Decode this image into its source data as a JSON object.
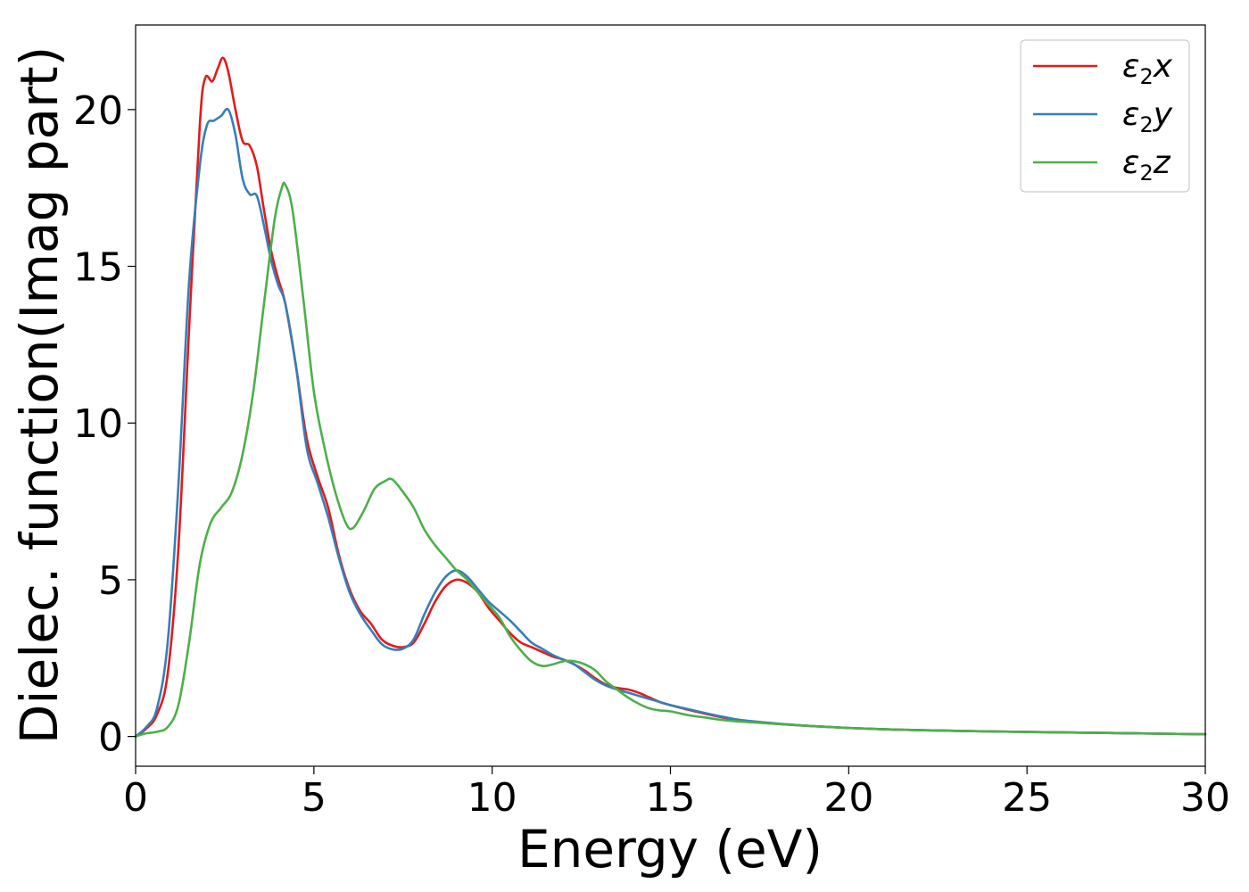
{
  "chart_data": {
    "type": "line",
    "title": "",
    "xlabel": "Energy (eV)",
    "ylabel": "Dielec. function(Imag part)",
    "xlim": [
      0,
      30
    ],
    "ylim": [
      -0.95,
      22.7
    ],
    "xticks": [
      0,
      5,
      10,
      15,
      20,
      25,
      30
    ],
    "xtick_labels": [
      "0",
      "5",
      "10",
      "15",
      "20",
      "25",
      "30"
    ],
    "yticks": [
      0,
      5,
      10,
      15,
      20
    ],
    "ytick_labels": [
      "0",
      "5",
      "10",
      "15",
      "20"
    ],
    "grid": false,
    "legend_position": "top-right",
    "series": [
      {
        "name": "ε₂x",
        "label_main": "ε",
        "label_sub": "2",
        "label_tail": "x",
        "color": "#e41a1c",
        "points": [
          [
            0,
            0.0
          ],
          [
            0.3,
            0.25
          ],
          [
            0.6,
            0.7
          ],
          [
            0.9,
            2.0
          ],
          [
            1.2,
            6.0
          ],
          [
            1.5,
            13.0
          ],
          [
            1.8,
            19.5
          ],
          [
            1.95,
            21.0
          ],
          [
            2.15,
            20.9
          ],
          [
            2.3,
            21.3
          ],
          [
            2.45,
            21.65
          ],
          [
            2.6,
            21.2
          ],
          [
            2.8,
            20.0
          ],
          [
            3.0,
            19.0
          ],
          [
            3.2,
            18.85
          ],
          [
            3.4,
            18.2
          ],
          [
            3.6,
            16.8
          ],
          [
            3.8,
            15.5
          ],
          [
            4.0,
            14.6
          ],
          [
            4.2,
            13.8
          ],
          [
            4.5,
            11.8
          ],
          [
            4.8,
            9.5
          ],
          [
            5.1,
            8.3
          ],
          [
            5.4,
            7.3
          ],
          [
            5.7,
            5.8
          ],
          [
            6.0,
            4.7
          ],
          [
            6.3,
            4.0
          ],
          [
            6.6,
            3.6
          ],
          [
            6.9,
            3.1
          ],
          [
            7.2,
            2.9
          ],
          [
            7.5,
            2.85
          ],
          [
            7.8,
            3.0
          ],
          [
            8.1,
            3.6
          ],
          [
            8.4,
            4.3
          ],
          [
            8.7,
            4.8
          ],
          [
            9.0,
            5.0
          ],
          [
            9.3,
            4.9
          ],
          [
            9.6,
            4.6
          ],
          [
            9.9,
            4.1
          ],
          [
            10.2,
            3.7
          ],
          [
            10.5,
            3.3
          ],
          [
            10.8,
            3.0
          ],
          [
            11.1,
            2.85
          ],
          [
            11.4,
            2.7
          ],
          [
            11.7,
            2.55
          ],
          [
            12.0,
            2.45
          ],
          [
            12.3,
            2.3
          ],
          [
            12.6,
            2.1
          ],
          [
            12.9,
            1.85
          ],
          [
            13.2,
            1.65
          ],
          [
            13.5,
            1.55
          ],
          [
            13.8,
            1.5
          ],
          [
            14.1,
            1.4
          ],
          [
            14.4,
            1.25
          ],
          [
            14.7,
            1.1
          ],
          [
            15.0,
            1.0
          ],
          [
            15.5,
            0.85
          ],
          [
            16.0,
            0.72
          ],
          [
            16.5,
            0.6
          ],
          [
            17.0,
            0.5
          ],
          [
            18.0,
            0.4
          ],
          [
            19.0,
            0.33
          ],
          [
            20.0,
            0.27
          ],
          [
            21.0,
            0.23
          ],
          [
            22.0,
            0.2
          ],
          [
            24.0,
            0.16
          ],
          [
            26.0,
            0.13
          ],
          [
            28.0,
            0.1
          ],
          [
            30.0,
            0.07
          ]
        ]
      },
      {
        "name": "ε₂y",
        "label_main": "ε",
        "label_sub": "2",
        "label_tail": "y",
        "color": "#377eb8",
        "points": [
          [
            0,
            0.0
          ],
          [
            0.3,
            0.3
          ],
          [
            0.6,
            0.9
          ],
          [
            0.9,
            3.0
          ],
          [
            1.2,
            8.0
          ],
          [
            1.5,
            14.5
          ],
          [
            1.8,
            18.2
          ],
          [
            2.0,
            19.5
          ],
          [
            2.2,
            19.65
          ],
          [
            2.4,
            19.8
          ],
          [
            2.6,
            20.0
          ],
          [
            2.8,
            19.2
          ],
          [
            3.0,
            17.8
          ],
          [
            3.2,
            17.3
          ],
          [
            3.4,
            17.25
          ],
          [
            3.6,
            16.3
          ],
          [
            3.8,
            15.2
          ],
          [
            4.0,
            14.4
          ],
          [
            4.2,
            13.8
          ],
          [
            4.5,
            11.8
          ],
          [
            4.8,
            9.2
          ],
          [
            5.1,
            8.1
          ],
          [
            5.4,
            7.0
          ],
          [
            5.7,
            5.7
          ],
          [
            6.0,
            4.6
          ],
          [
            6.3,
            3.9
          ],
          [
            6.6,
            3.4
          ],
          [
            6.9,
            2.95
          ],
          [
            7.2,
            2.78
          ],
          [
            7.5,
            2.8
          ],
          [
            7.8,
            3.1
          ],
          [
            8.1,
            3.9
          ],
          [
            8.4,
            4.6
          ],
          [
            8.7,
            5.1
          ],
          [
            9.0,
            5.3
          ],
          [
            9.3,
            5.1
          ],
          [
            9.6,
            4.7
          ],
          [
            9.9,
            4.3
          ],
          [
            10.2,
            4.0
          ],
          [
            10.5,
            3.7
          ],
          [
            10.8,
            3.35
          ],
          [
            11.1,
            3.0
          ],
          [
            11.4,
            2.8
          ],
          [
            11.7,
            2.6
          ],
          [
            12.0,
            2.45
          ],
          [
            12.3,
            2.3
          ],
          [
            12.6,
            2.05
          ],
          [
            12.9,
            1.8
          ],
          [
            13.2,
            1.62
          ],
          [
            13.5,
            1.5
          ],
          [
            13.8,
            1.4
          ],
          [
            14.1,
            1.3
          ],
          [
            14.4,
            1.2
          ],
          [
            14.7,
            1.1
          ],
          [
            15.0,
            1.0
          ],
          [
            15.5,
            0.87
          ],
          [
            16.0,
            0.74
          ],
          [
            16.5,
            0.62
          ],
          [
            17.0,
            0.52
          ],
          [
            18.0,
            0.41
          ],
          [
            19.0,
            0.33
          ],
          [
            20.0,
            0.27
          ],
          [
            21.0,
            0.23
          ],
          [
            22.0,
            0.2
          ],
          [
            24.0,
            0.16
          ],
          [
            26.0,
            0.13
          ],
          [
            28.0,
            0.1
          ],
          [
            30.0,
            0.07
          ]
        ]
      },
      {
        "name": "ε₂z",
        "label_main": "ε",
        "label_sub": "2",
        "label_tail": "z",
        "color": "#4daf4a",
        "points": [
          [
            0,
            0.0
          ],
          [
            0.3,
            0.1
          ],
          [
            0.6,
            0.15
          ],
          [
            0.9,
            0.3
          ],
          [
            1.2,
            1.0
          ],
          [
            1.5,
            3.0
          ],
          [
            1.8,
            5.5
          ],
          [
            2.1,
            6.8
          ],
          [
            2.4,
            7.3
          ],
          [
            2.7,
            7.8
          ],
          [
            3.0,
            9.0
          ],
          [
            3.3,
            11.0
          ],
          [
            3.6,
            13.8
          ],
          [
            3.9,
            16.5
          ],
          [
            4.1,
            17.5
          ],
          [
            4.2,
            17.6
          ],
          [
            4.4,
            16.8
          ],
          [
            4.7,
            14.0
          ],
          [
            5.0,
            11.0
          ],
          [
            5.3,
            9.2
          ],
          [
            5.6,
            7.8
          ],
          [
            5.9,
            6.8
          ],
          [
            6.1,
            6.65
          ],
          [
            6.4,
            7.2
          ],
          [
            6.7,
            7.9
          ],
          [
            7.0,
            8.15
          ],
          [
            7.2,
            8.2
          ],
          [
            7.5,
            7.8
          ],
          [
            7.8,
            7.3
          ],
          [
            8.1,
            6.6
          ],
          [
            8.4,
            6.1
          ],
          [
            8.7,
            5.7
          ],
          [
            9.0,
            5.3
          ],
          [
            9.3,
            5.0
          ],
          [
            9.6,
            4.6
          ],
          [
            9.9,
            4.2
          ],
          [
            10.2,
            3.8
          ],
          [
            10.5,
            3.2
          ],
          [
            10.8,
            2.75
          ],
          [
            11.1,
            2.4
          ],
          [
            11.4,
            2.25
          ],
          [
            11.7,
            2.3
          ],
          [
            12.0,
            2.4
          ],
          [
            12.3,
            2.4
          ],
          [
            12.6,
            2.3
          ],
          [
            12.9,
            2.1
          ],
          [
            13.2,
            1.75
          ],
          [
            13.5,
            1.5
          ],
          [
            13.8,
            1.25
          ],
          [
            14.1,
            1.05
          ],
          [
            14.4,
            0.9
          ],
          [
            14.7,
            0.83
          ],
          [
            15.0,
            0.8
          ],
          [
            15.5,
            0.68
          ],
          [
            16.0,
            0.6
          ],
          [
            16.5,
            0.52
          ],
          [
            17.0,
            0.47
          ],
          [
            18.0,
            0.4
          ],
          [
            19.0,
            0.33
          ],
          [
            20.0,
            0.27
          ],
          [
            21.0,
            0.23
          ],
          [
            22.0,
            0.2
          ],
          [
            24.0,
            0.16
          ],
          [
            26.0,
            0.13
          ],
          [
            28.0,
            0.1
          ],
          [
            30.0,
            0.07
          ]
        ]
      }
    ]
  }
}
